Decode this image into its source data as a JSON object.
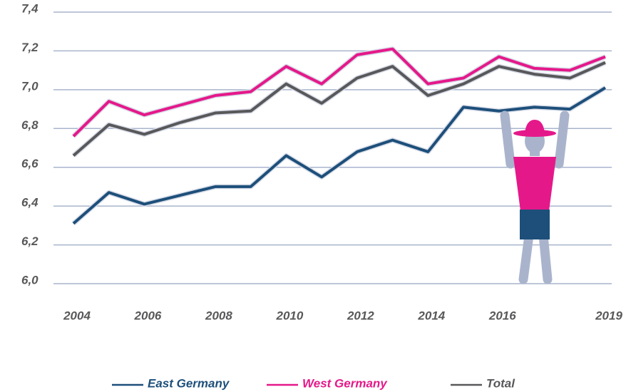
{
  "chart_data": {
    "type": "line",
    "x": [
      2004,
      2005,
      2006,
      2007,
      2008,
      2009,
      2010,
      2011,
      2012,
      2013,
      2014,
      2015,
      2016,
      2017,
      2018,
      2019
    ],
    "series": [
      {
        "name": "East Germany",
        "color": "#1d4f7a",
        "values": [
          6.31,
          6.47,
          6.41,
          6.455,
          6.5,
          6.5,
          6.66,
          6.55,
          6.68,
          6.74,
          6.68,
          6.91,
          6.89,
          6.91,
          6.9,
          7.01
        ]
      },
      {
        "name": "West Germany",
        "color": "#e5188a",
        "values": [
          6.76,
          6.94,
          6.87,
          6.92,
          6.97,
          6.99,
          7.12,
          7.03,
          7.18,
          7.21,
          7.03,
          7.06,
          7.17,
          7.11,
          7.1,
          7.17
        ]
      },
      {
        "name": "Total",
        "color": "#58585a",
        "values": [
          6.66,
          6.82,
          6.77,
          6.83,
          6.88,
          6.89,
          7.03,
          6.93,
          7.06,
          7.12,
          6.97,
          7.03,
          7.12,
          7.08,
          7.06,
          7.14
        ]
      }
    ],
    "xlim": [
      2004,
      2019
    ],
    "xticks": [
      2004,
      2006,
      2008,
      2010,
      2012,
      2014,
      2016,
      2019
    ],
    "ylim": [
      6.0,
      7.4
    ],
    "yticks": [
      {
        "value": 6.0,
        "label": "6,0"
      },
      {
        "value": 6.2,
        "label": "6,2"
      },
      {
        "value": 6.4,
        "label": "6,4"
      },
      {
        "value": 6.6,
        "label": "6,6"
      },
      {
        "value": 6.8,
        "label": "6,8"
      },
      {
        "value": 7.0,
        "label": "7,0"
      },
      {
        "value": 7.2,
        "label": "7,2"
      },
      {
        "value": 7.4,
        "label": "7,4"
      }
    ],
    "grid": true,
    "legend": "bottom"
  }
}
